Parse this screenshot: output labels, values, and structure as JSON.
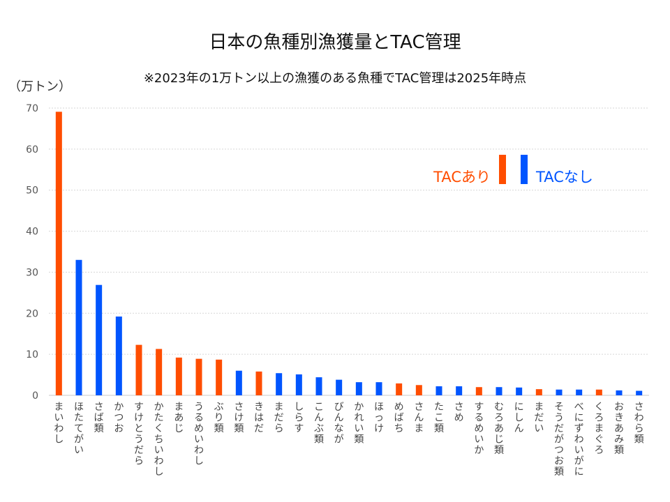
{
  "chart_data": {
    "type": "bar",
    "title": "日本の魚種別漁獲量とTAC管理",
    "subtitle": "※2023年の1万トン以上の漁獲のある魚種でTAC管理は2025年時点",
    "ylabel": "（万トン）",
    "ylim": [
      0,
      70
    ],
    "yticks": [
      0,
      10,
      20,
      30,
      40,
      50,
      60,
      70
    ],
    "grid": true,
    "legend_position": "top-right",
    "series": [
      {
        "name": "TACあり",
        "color": "#ff4d00"
      },
      {
        "name": "TACなし",
        "color": "#0055ff"
      }
    ],
    "categories": [
      "まいわし",
      "ほたてがい",
      "さば類",
      "かつお",
      "すけとうだら",
      "かたくちいわし",
      "まあじ",
      "うるめいわし",
      "ぶり類",
      "さけ類",
      "きはだ",
      "まだら",
      "しらす",
      "こんぶ類",
      "びんなが",
      "かれい類",
      "ほっけ",
      "めばち",
      "さんま",
      "たこ類",
      "さめ",
      "するめいか",
      "むろあじ類",
      "にしん",
      "まだい",
      "そうだがつお類",
      "べにずわいがに",
      "くろまぐろ",
      "おきあみ類",
      "さわら類"
    ],
    "values": [
      69.1,
      33.0,
      26.9,
      19.2,
      12.3,
      11.3,
      9.2,
      8.9,
      8.7,
      6.0,
      5.8,
      5.4,
      5.1,
      4.4,
      3.8,
      3.2,
      3.2,
      2.9,
      2.5,
      2.2,
      2.2,
      2.0,
      2.0,
      1.9,
      1.5,
      1.4,
      1.4,
      1.4,
      1.2,
      1.1
    ],
    "tac": [
      true,
      false,
      false,
      false,
      true,
      true,
      true,
      true,
      true,
      false,
      true,
      false,
      false,
      false,
      false,
      false,
      false,
      true,
      true,
      false,
      false,
      true,
      false,
      false,
      true,
      false,
      false,
      true,
      false,
      false
    ]
  }
}
